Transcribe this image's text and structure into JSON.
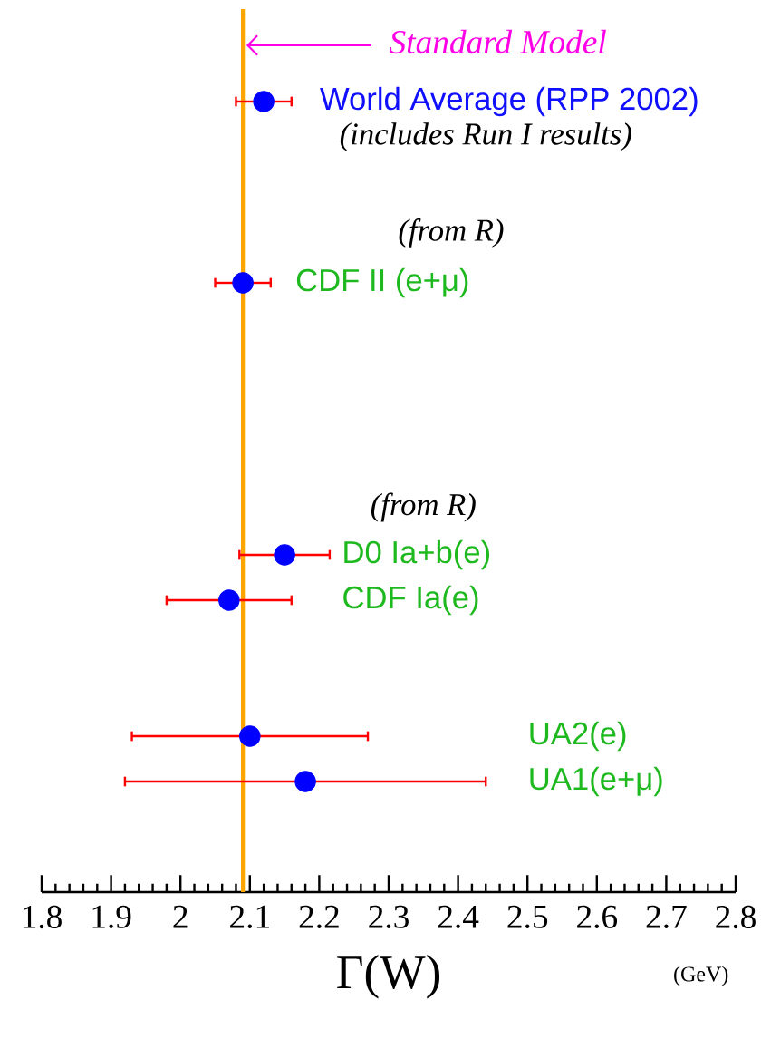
{
  "chart_data": {
    "type": "scatter",
    "orientation": "horizontal",
    "categories": [
      "World Average (RPP 2002)",
      null,
      null,
      null,
      "CDF II (e+μ)",
      null,
      null,
      null,
      null,
      null,
      "D0 Ia+b(e)",
      "CDF Ia(e)",
      null,
      null,
      "UA2(e)",
      "UA1(e+μ)"
    ],
    "values": [
      2.12,
      null,
      null,
      null,
      2.09,
      null,
      null,
      null,
      null,
      null,
      2.15,
      2.07,
      null,
      null,
      2.1,
      2.18
    ],
    "errors": [
      0.04,
      null,
      null,
      null,
      0.04,
      null,
      null,
      null,
      null,
      null,
      0.065,
      0.09,
      null,
      null,
      0.17,
      0.26
    ],
    "color": "#0000ff",
    "marker": "circle",
    "xlabel": "Γ(W)",
    "xlim": [
      1.8,
      2.8
    ],
    "xticks": [
      1.8,
      1.9,
      2,
      2.1,
      2.2,
      2.3,
      2.4,
      2.5,
      2.6,
      2.7,
      2.8
    ],
    "ref_lines": [
      {
        "axis": "x",
        "value": 2.09,
        "label": "Standard Model",
        "color": "#ffa500"
      }
    ],
    "annotations": [
      "(includes Run I results)",
      "(from R)",
      "(from R)",
      "(GeV)"
    ]
  }
}
